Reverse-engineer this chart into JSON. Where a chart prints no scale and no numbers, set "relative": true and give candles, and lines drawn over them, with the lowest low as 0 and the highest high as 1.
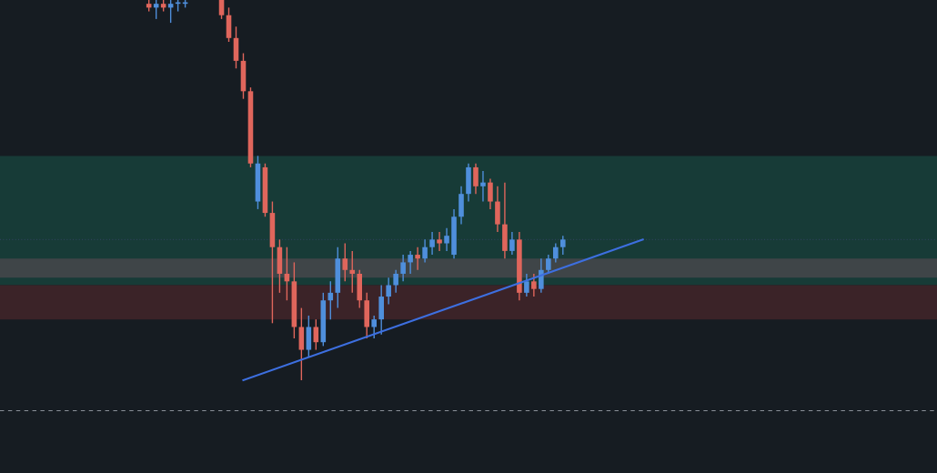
{
  "chart_data": {
    "type": "candlestick",
    "relative": true,
    "colors": [
      null,
      null,
      null,
      null,
      null,
      null,
      null,
      null,
      null,
      null,
      null,
      null,
      null,
      null,
      null,
      null,
      null,
      null,
      null,
      null,
      "#e0665c",
      "#4f8fdc",
      "#e0665c",
      "#4f8fdc",
      "#4f8fdc",
      "#4f8fdc",
      null,
      null,
      null,
      null,
      "#e0665c",
      "#e0665c",
      "#e0665c",
      "#e0665c",
      "#e0665c",
      "#4f8fdc",
      "#e0665c",
      "#e0665c",
      "#e0665c",
      "#e0665c",
      "#e0665c",
      "#e0665c",
      "#4f8fdc",
      "#e0665c",
      "#4f8fdc",
      "#4f8fdc",
      "#4f8fdc",
      "#e0665c",
      "#e0665c",
      "#e0665c",
      "#e0665c",
      "#4f8fdc",
      "#4f8fdc",
      "#4f8fdc",
      "#4f8fdc",
      "#4f8fdc",
      "#4f8fdc",
      "#e0665c",
      "#4f8fdc",
      "#4f8fdc",
      "#e0665c",
      "#4f8fdc",
      "#4f8fdc",
      "#4f8fdc",
      "#4f8fdc",
      "#e0665c",
      "#4f8fdc",
      "#e0665c",
      "#e0665c",
      "#e0665c",
      "#4f8fdc",
      "#e0665c",
      "#4f8fdc",
      "#e0665c",
      "#4f8fdc",
      "#4f8fdc",
      "#4f8fdc",
      "#4f8fdc",
      null,
      null,
      null,
      null,
      null,
      null,
      null,
      null,
      null,
      null,
      null,
      null,
      null,
      null,
      null,
      null,
      null,
      null,
      null,
      null,
      null,
      null,
      null,
      null,
      null,
      null,
      null,
      null,
      null,
      null,
      null,
      null,
      null,
      null,
      null,
      null,
      null,
      null,
      null,
      null,
      null,
      null,
      null,
      null,
      null,
      null,
      null,
      null,
      null,
      null,
      null
    ],
    "categories": [
      null,
      null,
      null,
      null,
      null,
      null,
      null,
      null,
      null,
      null,
      null,
      null,
      null,
      null,
      null,
      null,
      null,
      null,
      null,
      null,
      null,
      null,
      null,
      null,
      null,
      null,
      null,
      null,
      null,
      null,
      null,
      null,
      null,
      null,
      null,
      null,
      null,
      null,
      null,
      null,
      null,
      null,
      null,
      null,
      null,
      null,
      null,
      null,
      null,
      null,
      null,
      null,
      null,
      null,
      null,
      null,
      null,
      null,
      null,
      null,
      null,
      null,
      null,
      null,
      null,
      null,
      null,
      null,
      null,
      null,
      null,
      null,
      null,
      null,
      null,
      null,
      null,
      null,
      null,
      null,
      null,
      null,
      null,
      null,
      null,
      null,
      null,
      null,
      null,
      null,
      null,
      null,
      null,
      null,
      null,
      null,
      null,
      null,
      null,
      null,
      null,
      null,
      null,
      null,
      null,
      null,
      null,
      null,
      null,
      null,
      null,
      null,
      null,
      null,
      null,
      null,
      null,
      null,
      null,
      null,
      null,
      null,
      null,
      null,
      null,
      null,
      null,
      null,
      null
    ],
    "ohlc": [
      null,
      null,
      null,
      null,
      null,
      null,
      null,
      null,
      null,
      null,
      null,
      null,
      null,
      null,
      null,
      null,
      null,
      null,
      null,
      null,
      [
        0.99,
        1.0,
        0.97,
        0.98
      ],
      [
        0.98,
        1.0,
        0.95,
        0.99
      ],
      [
        0.99,
        1.0,
        0.97,
        0.98
      ],
      [
        0.98,
        1.0,
        0.94,
        0.99
      ],
      [
        0.99,
        1.0,
        0.97,
        0.99
      ],
      [
        0.99,
        1.0,
        0.98,
        0.99
      ],
      null,
      null,
      null,
      null,
      [
        1.0,
        1.0,
        0.95,
        0.96
      ],
      [
        0.96,
        0.98,
        0.89,
        0.9
      ],
      [
        0.9,
        0.93,
        0.82,
        0.84
      ],
      [
        0.84,
        0.86,
        0.74,
        0.76
      ],
      [
        0.76,
        0.77,
        0.56,
        0.57
      ],
      [
        0.47,
        0.59,
        0.45,
        0.57
      ],
      [
        0.56,
        0.57,
        0.43,
        0.44
      ],
      [
        0.44,
        0.47,
        0.15,
        0.35
      ],
      [
        0.35,
        0.37,
        0.23,
        0.28
      ],
      [
        0.28,
        0.35,
        0.21,
        0.26
      ],
      [
        0.26,
        0.31,
        0.11,
        0.14
      ],
      [
        0.14,
        0.19,
        0.0,
        0.08
      ],
      [
        0.08,
        0.17,
        0.06,
        0.14
      ],
      [
        0.14,
        0.16,
        0.08,
        0.1
      ],
      [
        0.1,
        0.23,
        0.09,
        0.21
      ],
      [
        0.21,
        0.26,
        0.16,
        0.23
      ],
      [
        0.23,
        0.35,
        0.19,
        0.32
      ],
      [
        0.32,
        0.36,
        0.26,
        0.29
      ],
      [
        0.29,
        0.34,
        0.23,
        0.28
      ],
      [
        0.28,
        0.29,
        0.19,
        0.21
      ],
      [
        0.21,
        0.23,
        0.11,
        0.14
      ],
      [
        0.14,
        0.17,
        0.11,
        0.16
      ],
      [
        0.16,
        0.25,
        0.12,
        0.22
      ],
      [
        0.22,
        0.27,
        0.2,
        0.25
      ],
      [
        0.25,
        0.29,
        0.23,
        0.28
      ],
      [
        0.28,
        0.33,
        0.26,
        0.31
      ],
      [
        0.31,
        0.34,
        0.28,
        0.33
      ],
      [
        0.33,
        0.35,
        0.29,
        0.32
      ],
      [
        0.32,
        0.37,
        0.31,
        0.35
      ],
      [
        0.35,
        0.39,
        0.33,
        0.37
      ],
      [
        0.37,
        0.39,
        0.34,
        0.36
      ],
      [
        0.36,
        0.4,
        0.34,
        0.38
      ],
      [
        0.33,
        0.45,
        0.32,
        0.43
      ],
      [
        0.43,
        0.51,
        0.41,
        0.49
      ],
      [
        0.49,
        0.57,
        0.47,
        0.56
      ],
      [
        0.56,
        0.57,
        0.49,
        0.51
      ],
      [
        0.51,
        0.55,
        0.47,
        0.52
      ],
      [
        0.52,
        0.53,
        0.45,
        0.47
      ],
      [
        0.47,
        0.51,
        0.39,
        0.41
      ],
      [
        0.41,
        0.52,
        0.32,
        0.34
      ],
      [
        0.34,
        0.39,
        0.33,
        0.37
      ],
      [
        0.37,
        0.39,
        0.21,
        0.23
      ],
      [
        0.23,
        0.28,
        0.22,
        0.26
      ],
      [
        0.26,
        0.28,
        0.22,
        0.24
      ],
      [
        0.24,
        0.32,
        0.23,
        0.29
      ],
      [
        0.29,
        0.33,
        0.28,
        0.32
      ],
      [
        0.32,
        0.36,
        0.31,
        0.35
      ],
      [
        0.35,
        0.38,
        0.33,
        0.37
      ],
      null,
      null,
      null,
      null,
      null,
      null,
      null,
      null,
      null,
      null,
      null,
      null,
      null,
      null,
      null,
      null,
      null,
      null,
      null,
      null,
      null,
      null,
      null,
      null,
      null,
      null,
      null,
      null,
      null,
      null,
      null,
      null,
      null,
      null,
      null,
      null,
      null,
      null,
      null,
      null,
      null,
      null,
      null,
      null,
      null,
      null,
      null,
      null,
      null,
      null,
      null
    ],
    "series": [
      {
        "type": "line",
        "color": "#3d6fe0",
        "values": [
          null,
          null,
          null,
          null,
          null,
          null,
          null,
          null,
          null,
          null,
          null,
          null,
          null,
          null,
          null,
          null,
          null,
          null,
          null,
          null,
          null,
          null,
          null,
          null,
          null,
          null,
          null,
          null,
          null,
          null,
          null,
          null,
          null,
          0.0,
          null,
          null,
          null,
          null,
          null,
          null,
          null,
          null,
          null,
          null,
          null,
          null,
          null,
          null,
          null,
          null,
          null,
          null,
          null,
          null,
          null,
          null,
          null,
          null,
          null,
          null,
          null,
          null,
          null,
          null,
          null,
          null,
          null,
          null,
          null,
          null,
          null,
          null,
          null,
          null,
          null,
          null,
          null,
          null,
          null,
          null,
          null,
          null,
          null,
          null,
          null,
          null,
          null,
          null,
          0.37,
          null,
          null,
          null,
          null,
          null,
          null,
          null,
          null,
          null,
          null,
          null,
          null,
          null,
          null,
          null,
          null,
          null,
          null,
          null,
          null,
          null,
          null,
          null,
          null,
          null,
          null,
          null,
          null,
          null,
          null,
          null,
          null,
          null,
          null,
          null,
          null,
          null,
          null,
          null,
          null
        ]
      }
    ],
    "bands": [
      {
        "axis": "y",
        "from": 0.25,
        "to": 0.59,
        "color": "#173b37"
      },
      {
        "axis": "y",
        "from": 0.16,
        "to": 0.25,
        "color": "#3b2328"
      },
      {
        "axis": "y",
        "from": 0.27,
        "to": 0.32,
        "color": "#3f4548"
      }
    ],
    "ref_lines": [
      {
        "axis": "y",
        "value": 0.37,
        "color": "#2c4058",
        "line_style": "dotted"
      },
      {
        "axis": "y",
        "value": -0.08,
        "color": "#8a9099",
        "line_style": "dashed"
      }
    ]
  }
}
